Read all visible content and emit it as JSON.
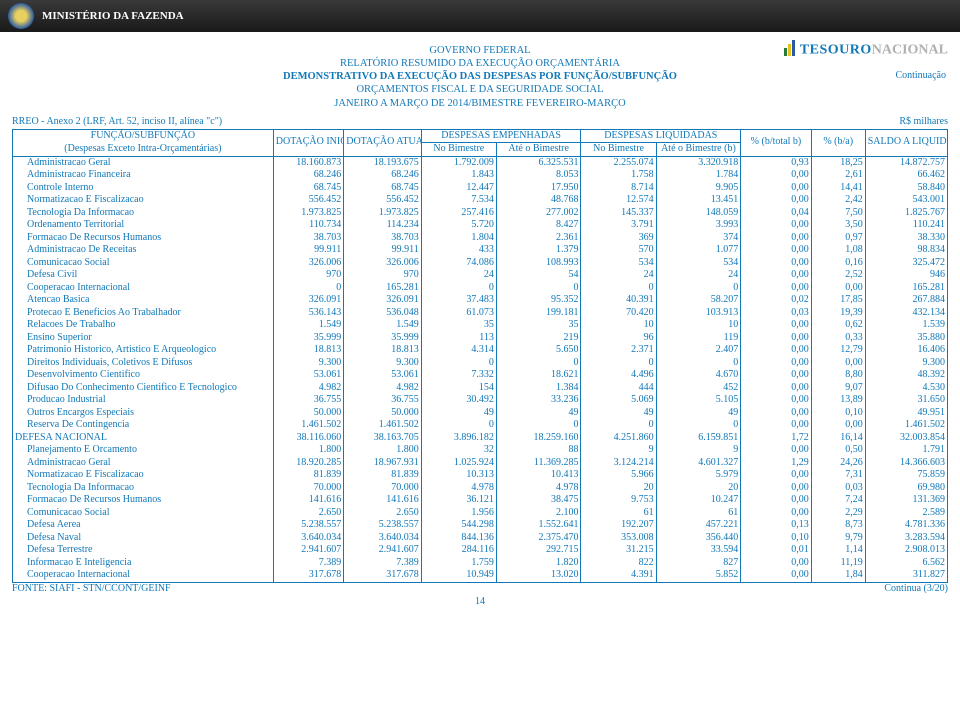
{
  "header": {
    "ministry": "MINISTÉRIO DA FAZENDA",
    "logo_tesouro": "TESOURO",
    "logo_nacional": "NACIONAL",
    "continuation": "Continuação"
  },
  "title": {
    "l1": "GOVERNO FEDERAL",
    "l2": "RELATÓRIO RESUMIDO DA EXECUÇÃO ORÇAMENTÁRIA",
    "l3": "DEMONSTRATIVO DA EXECUÇÃO DAS DESPESAS POR FUNÇÃO/SUBFUNÇÃO",
    "l4": "ORÇAMENTOS FISCAL E DA SEGURIDADE SOCIAL",
    "l5": "JANEIRO A MARÇO DE 2014/BIMESTRE FEVEREIRO-MARÇO"
  },
  "meta": {
    "left": "RREO - Anexo 2 (LRF, Art. 52, inciso II, alínea \"c\")",
    "right": "R$ milhares"
  },
  "thead": {
    "func": "FUNÇÃO/SUBFUNÇÃO",
    "sub": "(Despesas Exceto Intra-Orçamentárias)",
    "dot_ini": "DOTAÇÃO INICIAL",
    "dot_atu": "DOTAÇÃO ATUALIZADA (a)",
    "emp": "DESPESAS EMPENHADAS",
    "liq": "DESPESAS LIQUIDADAS",
    "no_bim": "No Bimestre",
    "ate_bim": "Até o Bimestre",
    "no_bim2": "No Bimestre",
    "ate_bim_b": "Até o Bimestre (b)",
    "pct_bt": "% (b/total b)",
    "pct_ba": "% (b/a)",
    "saldo": "SALDO A LIQUIDAR (a-b)"
  },
  "rows": [
    {
      "label": "Administracao Geral",
      "indent": 1,
      "v": [
        "18.160.873",
        "18.193.675",
        "1.792.009",
        "6.325.531",
        "2.255.074",
        "3.320.918",
        "0,93",
        "18,25",
        "14.872.757"
      ]
    },
    {
      "label": "Administracao Financeira",
      "indent": 1,
      "v": [
        "68.246",
        "68.246",
        "1.843",
        "8.053",
        "1.758",
        "1.784",
        "0,00",
        "2,61",
        "66.462"
      ]
    },
    {
      "label": "Controle Interno",
      "indent": 1,
      "v": [
        "68.745",
        "68.745",
        "12.447",
        "17.950",
        "8.714",
        "9.905",
        "0,00",
        "14,41",
        "58.840"
      ]
    },
    {
      "label": "Normatizacao E Fiscalizacao",
      "indent": 1,
      "v": [
        "556.452",
        "556.452",
        "7.534",
        "48.768",
        "12.574",
        "13.451",
        "0,00",
        "2,42",
        "543.001"
      ]
    },
    {
      "label": "Tecnologia Da Informacao",
      "indent": 1,
      "v": [
        "1.973.825",
        "1.973.825",
        "257.416",
        "277.002",
        "145.337",
        "148.059",
        "0,04",
        "7,50",
        "1.825.767"
      ]
    },
    {
      "label": "Ordenamento Territorial",
      "indent": 1,
      "v": [
        "110.734",
        "114.234",
        "5.720",
        "8.427",
        "3.791",
        "3.993",
        "0,00",
        "3,50",
        "110.241"
      ]
    },
    {
      "label": "Formacao De Recursos Humanos",
      "indent": 1,
      "v": [
        "38.703",
        "38.703",
        "1.804",
        "2.361",
        "369",
        "374",
        "0,00",
        "0,97",
        "38.330"
      ]
    },
    {
      "label": "Administracao De Receitas",
      "indent": 1,
      "v": [
        "99.911",
        "99.911",
        "433",
        "1.379",
        "570",
        "1.077",
        "0,00",
        "1,08",
        "98.834"
      ]
    },
    {
      "label": "Comunicacao Social",
      "indent": 1,
      "v": [
        "326.006",
        "326.006",
        "74.086",
        "108.993",
        "534",
        "534",
        "0,00",
        "0,16",
        "325.472"
      ]
    },
    {
      "label": "Defesa Civil",
      "indent": 1,
      "v": [
        "970",
        "970",
        "24",
        "54",
        "24",
        "24",
        "0,00",
        "2,52",
        "946"
      ]
    },
    {
      "label": "Cooperacao Internacional",
      "indent": 1,
      "v": [
        "0",
        "165.281",
        "0",
        "0",
        "0",
        "0",
        "0,00",
        "0,00",
        "165.281"
      ]
    },
    {
      "label": "Atencao Basica",
      "indent": 1,
      "v": [
        "326.091",
        "326.091",
        "37.483",
        "95.352",
        "40.391",
        "58.207",
        "0,02",
        "17,85",
        "267.884"
      ]
    },
    {
      "label": "Protecao E Beneficios Ao Trabalhador",
      "indent": 1,
      "v": [
        "536.143",
        "536.048",
        "61.073",
        "199.181",
        "70.420",
        "103.913",
        "0,03",
        "19,39",
        "432.134"
      ]
    },
    {
      "label": "Relacoes De Trabalho",
      "indent": 1,
      "v": [
        "1.549",
        "1.549",
        "35",
        "35",
        "10",
        "10",
        "0,00",
        "0,62",
        "1.539"
      ]
    },
    {
      "label": "Ensino Superior",
      "indent": 1,
      "v": [
        "35.999",
        "35.999",
        "113",
        "219",
        "96",
        "119",
        "0,00",
        "0,33",
        "35.880"
      ]
    },
    {
      "label": "Patrimonio Historico, Artistico E Arqueologico",
      "indent": 1,
      "v": [
        "18.813",
        "18.813",
        "4.314",
        "5.650",
        "2.371",
        "2.407",
        "0,00",
        "12,79",
        "16.406"
      ]
    },
    {
      "label": "Direitos Individuais, Coletivos E Difusos",
      "indent": 1,
      "v": [
        "9.300",
        "9.300",
        "0",
        "0",
        "0",
        "0",
        "0,00",
        "0,00",
        "9.300"
      ]
    },
    {
      "label": "Desenvolvimento Cientifico",
      "indent": 1,
      "v": [
        "53.061",
        "53.061",
        "7.332",
        "18.621",
        "4.496",
        "4.670",
        "0,00",
        "8,80",
        "48.392"
      ]
    },
    {
      "label": "Difusao Do Conhecimento Cientifico E Tecnologico",
      "indent": 1,
      "v": [
        "4.982",
        "4.982",
        "154",
        "1.384",
        "444",
        "452",
        "0,00",
        "9,07",
        "4.530"
      ]
    },
    {
      "label": "Producao Industrial",
      "indent": 1,
      "v": [
        "36.755",
        "36.755",
        "30.492",
        "33.236",
        "5.069",
        "5.105",
        "0,00",
        "13,89",
        "31.650"
      ]
    },
    {
      "label": "Outros Encargos Especiais",
      "indent": 1,
      "v": [
        "50.000",
        "50.000",
        "49",
        "49",
        "49",
        "49",
        "0,00",
        "0,10",
        "49.951"
      ]
    },
    {
      "label": "Reserva De Contingencia",
      "indent": 1,
      "v": [
        "1.461.502",
        "1.461.502",
        "0",
        "0",
        "0",
        "0",
        "0,00",
        "0,00",
        "1.461.502"
      ]
    },
    {
      "label": "DEFESA NACIONAL",
      "indent": 0,
      "v": [
        "38.116.060",
        "38.163.705",
        "3.896.182",
        "18.259.160",
        "4.251.860",
        "6.159.851",
        "1,72",
        "16,14",
        "32.003.854"
      ]
    },
    {
      "label": "Planejamento E Orcamento",
      "indent": 1,
      "v": [
        "1.800",
        "1.800",
        "32",
        "88",
        "9",
        "9",
        "0,00",
        "0,50",
        "1.791"
      ]
    },
    {
      "label": "Administracao Geral",
      "indent": 1,
      "v": [
        "18.920.285",
        "18.967.931",
        "1.025.924",
        "11.369.285",
        "3.124.214",
        "4.601.327",
        "1,29",
        "24,26",
        "14.366.603"
      ]
    },
    {
      "label": "Normatizacao E Fiscalizacao",
      "indent": 1,
      "v": [
        "81.839",
        "81.839",
        "10.313",
        "10.413",
        "5.966",
        "5.979",
        "0,00",
        "7,31",
        "75.859"
      ]
    },
    {
      "label": "Tecnologia Da Informacao",
      "indent": 1,
      "v": [
        "70.000",
        "70.000",
        "4.978",
        "4.978",
        "20",
        "20",
        "0,00",
        "0,03",
        "69.980"
      ]
    },
    {
      "label": "Formacao De Recursos Humanos",
      "indent": 1,
      "v": [
        "141.616",
        "141.616",
        "36.121",
        "38.475",
        "9.753",
        "10.247",
        "0,00",
        "7,24",
        "131.369"
      ]
    },
    {
      "label": "Comunicacao Social",
      "indent": 1,
      "v": [
        "2.650",
        "2.650",
        "1.956",
        "2.100",
        "61",
        "61",
        "0,00",
        "2,29",
        "2.589"
      ]
    },
    {
      "label": "Defesa Aerea",
      "indent": 1,
      "v": [
        "5.238.557",
        "5.238.557",
        "544.298",
        "1.552.641",
        "192.207",
        "457.221",
        "0,13",
        "8,73",
        "4.781.336"
      ]
    },
    {
      "label": "Defesa Naval",
      "indent": 1,
      "v": [
        "3.640.034",
        "3.640.034",
        "844.136",
        "2.375.470",
        "353.008",
        "356.440",
        "0,10",
        "9,79",
        "3.283.594"
      ]
    },
    {
      "label": "Defesa Terrestre",
      "indent": 1,
      "v": [
        "2.941.607",
        "2.941.607",
        "284.116",
        "292.715",
        "31.215",
        "33.594",
        "0,01",
        "1,14",
        "2.908.013"
      ]
    },
    {
      "label": "Informacao E Inteligencia",
      "indent": 1,
      "v": [
        "7.389",
        "7.389",
        "1.759",
        "1.820",
        "822",
        "827",
        "0,00",
        "11,19",
        "6.562"
      ]
    },
    {
      "label": "Cooperacao Internacional",
      "indent": 1,
      "v": [
        "317.678",
        "317.678",
        "10.949",
        "13.020",
        "4.391",
        "5.852",
        "0,00",
        "1,84",
        "311.827"
      ]
    }
  ],
  "footer": {
    "source": "FONTE: SIAFI - STN/CCONT/GEINF",
    "cont": "Continua (3/20)",
    "page": "14"
  },
  "style": {
    "text_color": "#1178b8",
    "border_color": "#1178b8",
    "header_bg": "#2a2a2a"
  }
}
